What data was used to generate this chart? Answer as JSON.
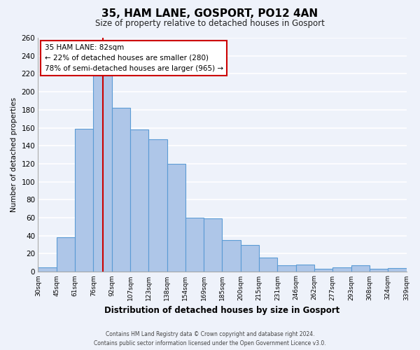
{
  "title": "35, HAM LANE, GOSPORT, PO12 4AN",
  "subtitle": "Size of property relative to detached houses in Gosport",
  "xlabel": "Distribution of detached houses by size in Gosport",
  "ylabel": "Number of detached properties",
  "bar_labels": [
    "30sqm",
    "45sqm",
    "61sqm",
    "76sqm",
    "92sqm",
    "107sqm",
    "123sqm",
    "138sqm",
    "154sqm",
    "169sqm",
    "185sqm",
    "200sqm",
    "215sqm",
    "231sqm",
    "246sqm",
    "262sqm",
    "277sqm",
    "293sqm",
    "308sqm",
    "324sqm",
    "339sqm"
  ],
  "bar_values": [
    5,
    38,
    159,
    218,
    182,
    158,
    147,
    120,
    60,
    59,
    35,
    30,
    16,
    7,
    8,
    3,
    5,
    7,
    3,
    4
  ],
  "bar_color": "#aec6e8",
  "bar_edge_color": "#5b9bd5",
  "background_color": "#eef2fa",
  "grid_color": "#ffffff",
  "red_line_color": "#cc0000",
  "annotation_title": "35 HAM LANE: 82sqm",
  "annotation_line1": "← 22% of detached houses are smaller (280)",
  "annotation_line2": "78% of semi-detached houses are larger (965) →",
  "annotation_box_facecolor": "#ffffff",
  "annotation_box_edgecolor": "#cc0000",
  "footer_line1": "Contains HM Land Registry data © Crown copyright and database right 2024.",
  "footer_line2": "Contains public sector information licensed under the Open Government Licence v3.0.",
  "ylim": [
    0,
    260
  ],
  "yticks": [
    0,
    20,
    40,
    60,
    80,
    100,
    120,
    140,
    160,
    180,
    200,
    220,
    240,
    260
  ],
  "red_line_x": 3.5
}
